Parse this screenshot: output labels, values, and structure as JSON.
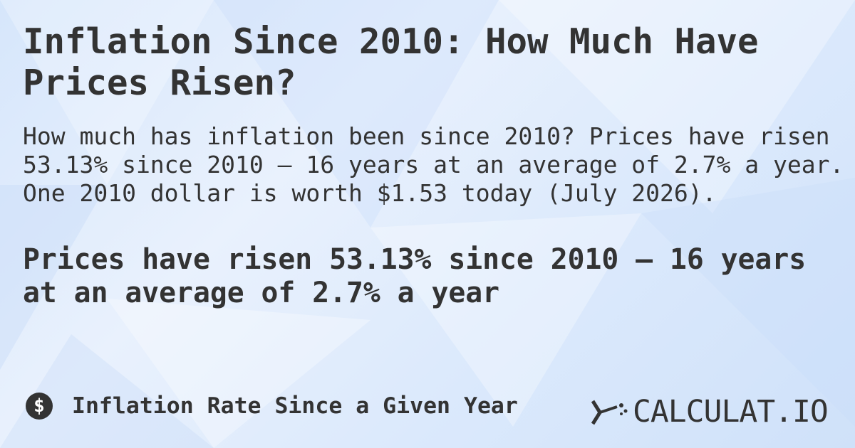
{
  "title": "Inflation Since 2010: How Much Have Prices Risen?",
  "description": "How much has inflation been since 2010? Prices have risen 53.13% since 2010 — 16 years at an average of 2.7% a year. One 2010 dollar is worth $1.53 today (July 2026).",
  "headline": "Prices have risen 53.13% since 2010 — 16 years at an average of 2.7% a year",
  "footer": {
    "icon": "$",
    "label": "Inflation Rate Since a Given Year",
    "logo": "CALCULAT.IO"
  }
}
